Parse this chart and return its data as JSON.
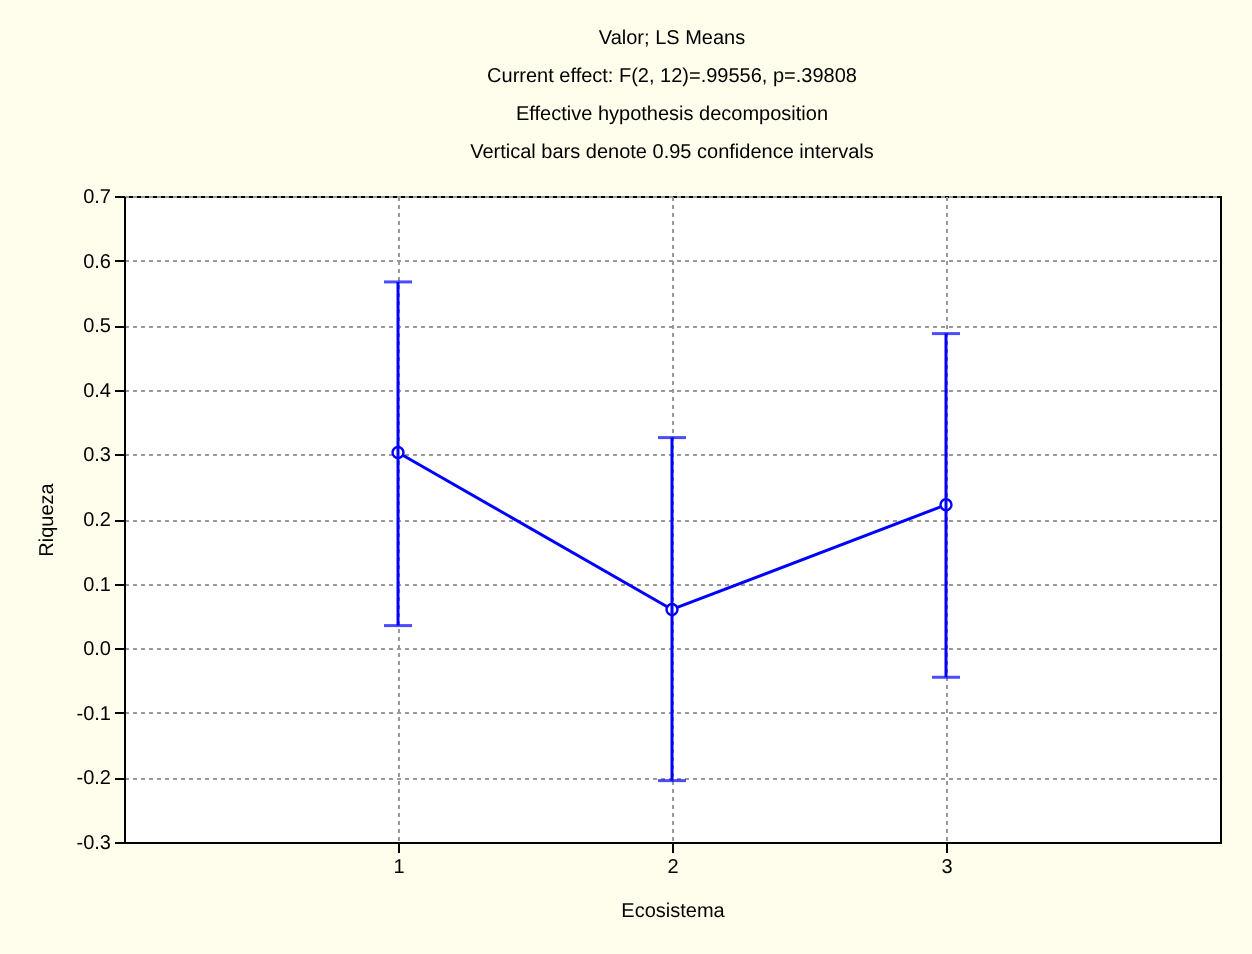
{
  "chart_data": {
    "type": "line",
    "title": "Valor; LS Means",
    "subtitle": "Current effect: F(2, 12)=.99556, p=.39808",
    "annotations": [
      "Effective hypothesis decomposition",
      "Vertical bars denote 0.95 confidence intervals"
    ],
    "xlabel": "Ecosistema",
    "ylabel": "Riqueza",
    "x": [
      1,
      2,
      3
    ],
    "series": [
      {
        "color": "#0000ff",
        "values": [
          0.303,
          0.06,
          0.222
        ],
        "errors": [
          [
            0.035,
            0.567
          ],
          [
            -0.205,
            0.326
          ],
          [
            -0.045,
            0.487
          ]
        ]
      }
    ],
    "xlim": [
      0,
      4
    ],
    "xticks": [
      1,
      2,
      3
    ],
    "ylim": [
      -0.3,
      0.7
    ],
    "yticks": [
      -0.3,
      -0.2,
      -0.1,
      {
        "value": 0,
        "label": "0.0"
      },
      0.1,
      0.2,
      0.3,
      0.4,
      0.5,
      0.6,
      0.7
    ],
    "grid": true,
    "marker": "circle",
    "line_style": "solid"
  }
}
